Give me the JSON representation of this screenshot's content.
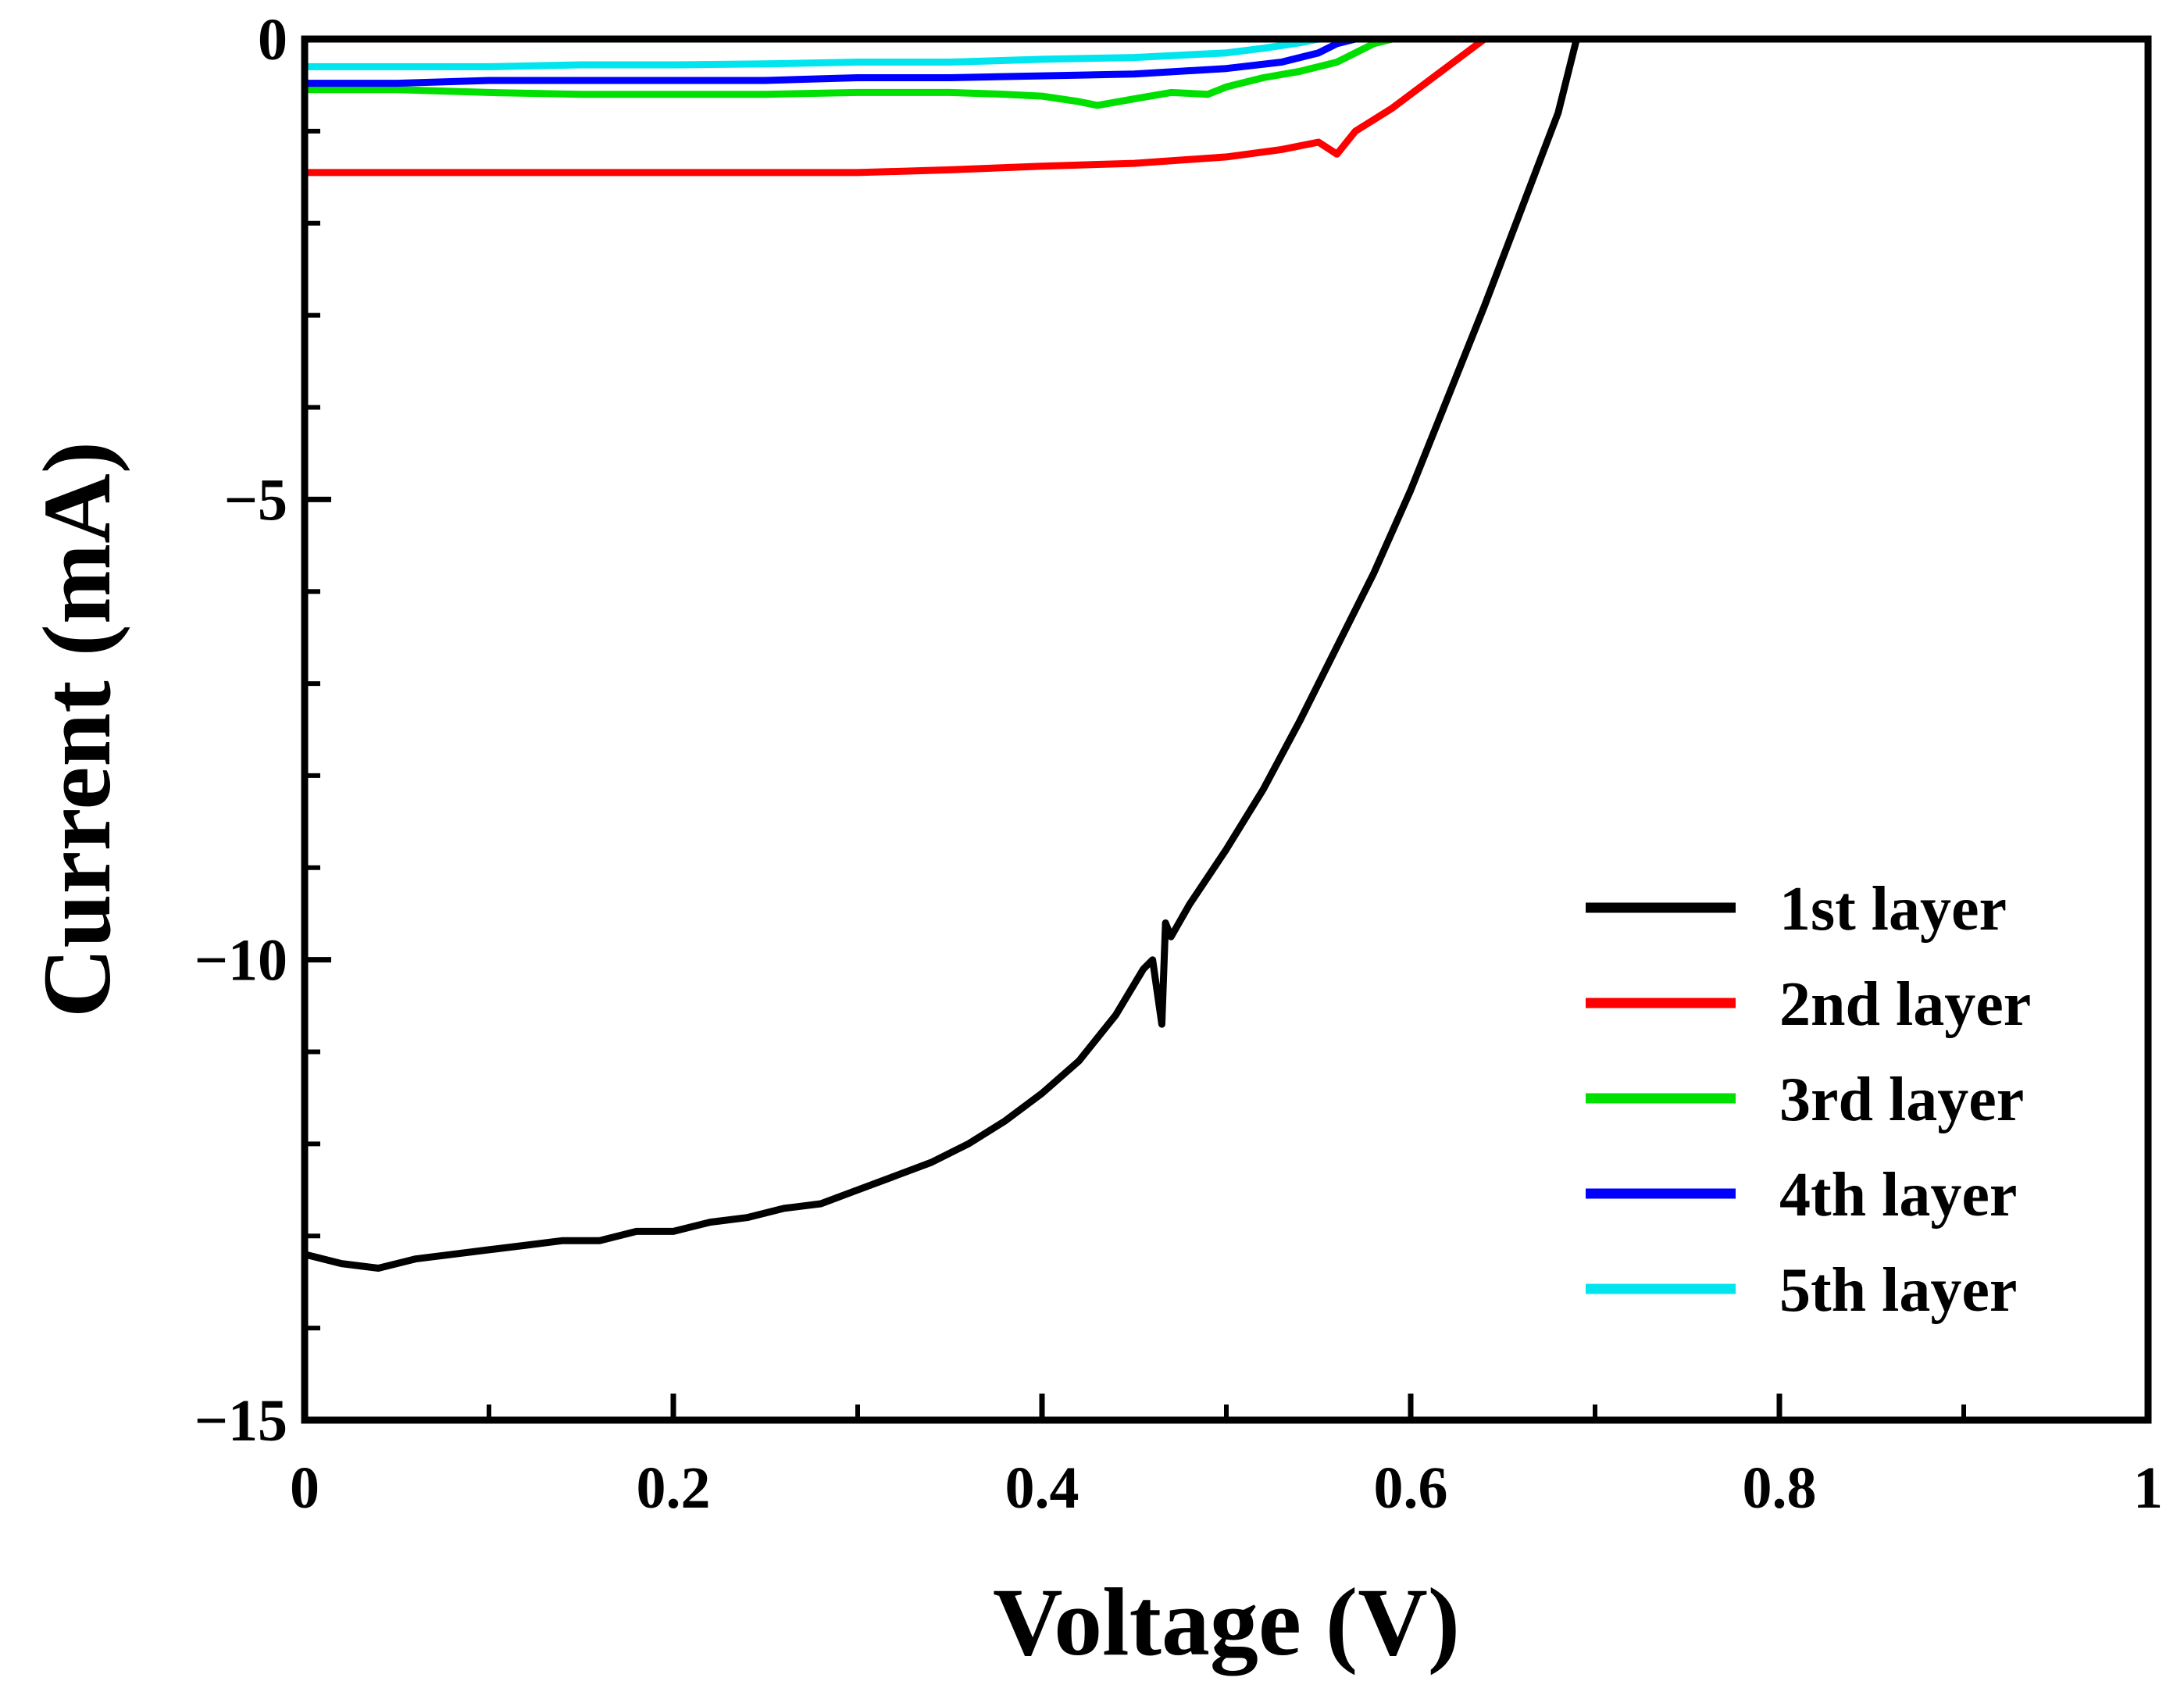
{
  "chart_data": {
    "type": "line",
    "title": "",
    "xlabel": "Voltage (V)",
    "ylabel": "Current (mA)",
    "xlim": [
      0,
      1
    ],
    "ylim": [
      -15,
      0
    ],
    "x_ticks": [
      0,
      0.2,
      0.4,
      0.6,
      0.8,
      1
    ],
    "x_tick_labels": [
      "0",
      "0.2",
      "0.4",
      "0.6",
      "0.8",
      "1"
    ],
    "y_ticks": [
      0,
      -5,
      -10,
      -15
    ],
    "y_tick_labels": [
      "0",
      "−5",
      "−10",
      "−15"
    ],
    "legend_position": "bottom-right",
    "grid": false,
    "series": [
      {
        "name": "1st layer",
        "color": "#000000",
        "x": [
          0,
          0.02,
          0.04,
          0.06,
          0.08,
          0.1,
          0.12,
          0.14,
          0.16,
          0.18,
          0.2,
          0.22,
          0.24,
          0.26,
          0.28,
          0.3,
          0.32,
          0.34,
          0.36,
          0.38,
          0.4,
          0.42,
          0.44,
          0.455,
          0.46,
          0.465,
          0.467,
          0.47,
          0.48,
          0.5,
          0.52,
          0.54,
          0.56,
          0.58,
          0.6,
          0.62,
          0.64,
          0.66,
          0.68,
          0.69
        ],
        "y": [
          -13.2,
          -13.3,
          -13.35,
          -13.25,
          -13.2,
          -13.15,
          -13.1,
          -13.05,
          -13.05,
          -12.95,
          -12.95,
          -12.85,
          -12.8,
          -12.7,
          -12.65,
          -12.5,
          -12.35,
          -12.2,
          -12.0,
          -11.75,
          -11.45,
          -11.1,
          -10.6,
          -10.1,
          -10.0,
          -10.7,
          -9.6,
          -9.75,
          -9.4,
          -8.8,
          -8.15,
          -7.4,
          -6.6,
          -5.8,
          -4.9,
          -3.9,
          -2.9,
          -1.85,
          -0.8,
          0.0
        ]
      },
      {
        "name": "2nd layer",
        "color": "#ff0000",
        "x": [
          0,
          0.05,
          0.1,
          0.15,
          0.2,
          0.25,
          0.3,
          0.35,
          0.4,
          0.45,
          0.5,
          0.53,
          0.55,
          0.56,
          0.57,
          0.59,
          0.61,
          0.63,
          0.64
        ],
        "y": [
          -1.45,
          -1.45,
          -1.45,
          -1.45,
          -1.45,
          -1.45,
          -1.45,
          -1.42,
          -1.38,
          -1.35,
          -1.28,
          -1.2,
          -1.12,
          -1.25,
          -1.0,
          -0.75,
          -0.45,
          -0.15,
          0.0
        ]
      },
      {
        "name": "3rd layer",
        "color": "#00e000",
        "x": [
          0,
          0.05,
          0.1,
          0.15,
          0.2,
          0.25,
          0.3,
          0.35,
          0.38,
          0.4,
          0.42,
          0.43,
          0.45,
          0.47,
          0.49,
          0.5,
          0.52,
          0.54,
          0.56,
          0.57,
          0.58,
          0.59
        ],
        "y": [
          -0.55,
          -0.55,
          -0.58,
          -0.6,
          -0.6,
          -0.6,
          -0.58,
          -0.58,
          -0.6,
          -0.62,
          -0.68,
          -0.72,
          -0.65,
          -0.58,
          -0.6,
          -0.52,
          -0.42,
          -0.35,
          -0.25,
          -0.15,
          -0.05,
          0.0
        ]
      },
      {
        "name": "4th layer",
        "color": "#0000ff",
        "x": [
          0,
          0.05,
          0.1,
          0.15,
          0.2,
          0.25,
          0.3,
          0.35,
          0.4,
          0.45,
          0.5,
          0.53,
          0.55,
          0.56,
          0.57
        ],
        "y": [
          -0.48,
          -0.48,
          -0.45,
          -0.45,
          -0.45,
          -0.45,
          -0.42,
          -0.42,
          -0.4,
          -0.38,
          -0.32,
          -0.25,
          -0.15,
          -0.05,
          0.0
        ]
      },
      {
        "name": "5th layer",
        "color": "#00e5ee",
        "x": [
          0,
          0.05,
          0.1,
          0.15,
          0.2,
          0.25,
          0.3,
          0.35,
          0.4,
          0.45,
          0.5,
          0.52,
          0.54,
          0.55
        ],
        "y": [
          -0.3,
          -0.3,
          -0.3,
          -0.28,
          -0.28,
          -0.27,
          -0.25,
          -0.25,
          -0.22,
          -0.2,
          -0.15,
          -0.1,
          -0.04,
          0.0
        ]
      }
    ]
  }
}
